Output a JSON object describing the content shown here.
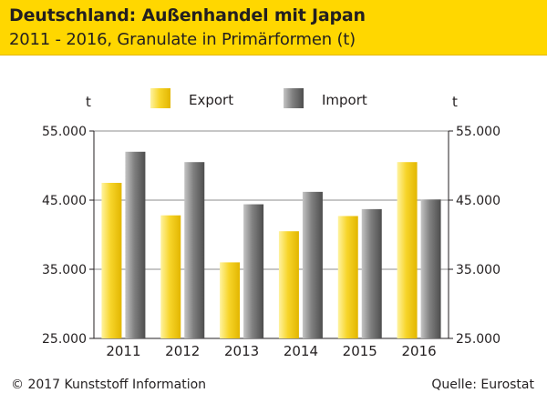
{
  "header": {
    "title": "Deutschland: Außenhandel mit Japan",
    "subtitle": "2011 - 2016, Granulate in Primärformen (t)"
  },
  "footer": {
    "copyright": "© 2017 Kunststoff Information",
    "source": "Quelle: Eurostat"
  },
  "colors": {
    "header_bg": "#ffd700",
    "export": "#f5cf1d",
    "import": "#7a7a7a"
  },
  "chart_data": {
    "type": "bar",
    "categories": [
      "2011",
      "2012",
      "2013",
      "2014",
      "2015",
      "2016"
    ],
    "series": [
      {
        "name": "Export",
        "values": [
          47500,
          42800,
          36000,
          40500,
          42700,
          50500
        ]
      },
      {
        "name": "Import",
        "values": [
          52000,
          50500,
          44400,
          46200,
          43700,
          45100
        ]
      }
    ],
    "ylim": [
      25000,
      55000
    ],
    "yticks": [
      25000,
      35000,
      45000,
      55000
    ],
    "ytick_labels": [
      "25.000",
      "35.000",
      "45.000",
      "55.000"
    ],
    "ylabel_left": "t",
    "ylabel_right": "t",
    "legend_position": "top",
    "grid": true
  }
}
